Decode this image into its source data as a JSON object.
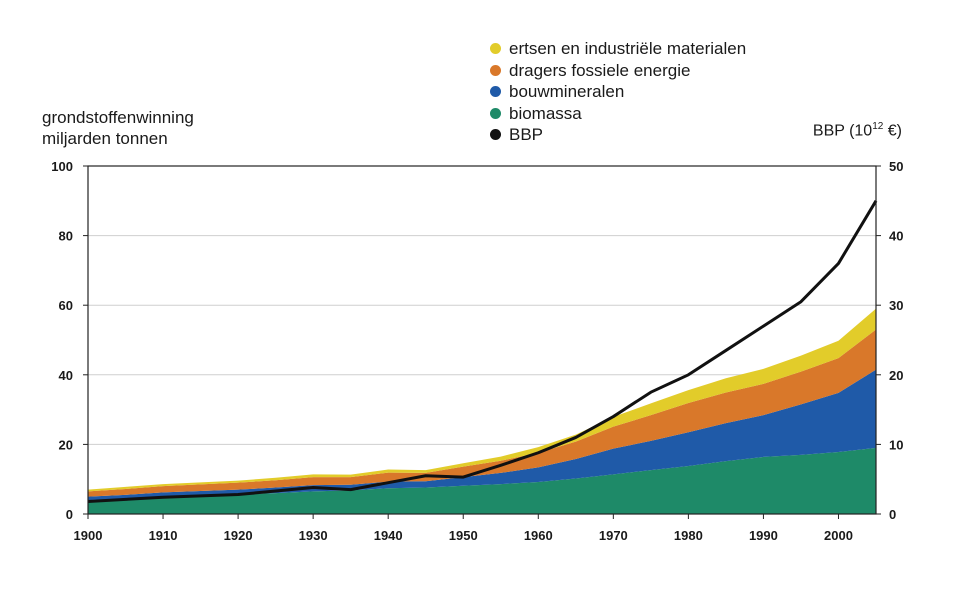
{
  "chart_data": {
    "type": "area",
    "ylabel_left_line1": "grondstoffenwinning",
    "ylabel_left_line2": "miljarden tonnen",
    "ylabel_right_text": "BBP (10",
    "ylabel_right_sup": "12",
    "ylabel_right_unit": " €)",
    "xlim": [
      1900,
      2005
    ],
    "ylim_left": [
      0,
      100
    ],
    "ylim_right": [
      0,
      50
    ],
    "xticks": [
      1900,
      1910,
      1920,
      1930,
      1940,
      1950,
      1960,
      1970,
      1980,
      1990,
      2000
    ],
    "yticks_left": [
      0,
      20,
      40,
      60,
      80,
      100
    ],
    "yticks_right": [
      0,
      10,
      20,
      30,
      40,
      50
    ],
    "grid": true,
    "legend_position": "top",
    "x": [
      1900,
      1905,
      1910,
      1915,
      1920,
      1925,
      1930,
      1935,
      1940,
      1945,
      1950,
      1955,
      1960,
      1965,
      1970,
      1975,
      1980,
      1985,
      1990,
      1995,
      2000,
      2005
    ],
    "series": [
      {
        "name": "biomassa",
        "color": "#1e8a68",
        "axis": "left",
        "stack": true,
        "values": [
          4.0,
          4.4,
          4.9,
          5.3,
          5.6,
          6.0,
          6.5,
          6.8,
          7.4,
          7.6,
          8.1,
          8.6,
          9.2,
          10.2,
          11.4,
          12.6,
          13.8,
          15.2,
          16.4,
          17.0,
          17.8,
          19.0
        ]
      },
      {
        "name": "bouwmineralen",
        "color": "#1f5aa8",
        "axis": "left",
        "stack": true,
        "values": [
          1.0,
          1.1,
          1.3,
          1.3,
          1.4,
          1.6,
          1.8,
          1.6,
          1.9,
          1.8,
          2.5,
          3.2,
          4.2,
          5.6,
          7.4,
          8.4,
          9.7,
          10.9,
          12.0,
          14.5,
          17.0,
          22.5
        ]
      },
      {
        "name": "dragers fossiele energie",
        "color": "#d9782a",
        "axis": "left",
        "stack": true,
        "values": [
          1.5,
          1.7,
          1.8,
          1.9,
          2.0,
          2.1,
          2.3,
          2.2,
          2.6,
          2.4,
          3.0,
          3.5,
          4.2,
          5.0,
          6.3,
          7.4,
          8.4,
          8.8,
          9.0,
          9.4,
          10.0,
          11.5
        ]
      },
      {
        "name": "ertsen en industriële materialen",
        "color": "#e2cc2a",
        "axis": "left",
        "stack": true,
        "values": [
          0.5,
          0.6,
          0.6,
          0.6,
          0.6,
          0.7,
          0.8,
          0.7,
          0.9,
          0.8,
          1.0,
          1.2,
          1.6,
          2.0,
          2.8,
          3.4,
          3.7,
          4.1,
          4.3,
          4.6,
          5.0,
          6.0
        ]
      },
      {
        "name": "BBP",
        "color": "#111111",
        "axis": "right",
        "stack": false,
        "values": [
          1.8,
          2.1,
          2.4,
          2.6,
          2.8,
          3.3,
          3.8,
          3.5,
          4.5,
          5.5,
          5.3,
          7.0,
          8.8,
          11.0,
          14.0,
          17.5,
          20.0,
          23.5,
          27.0,
          30.5,
          36.0,
          45.0
        ]
      }
    ]
  }
}
